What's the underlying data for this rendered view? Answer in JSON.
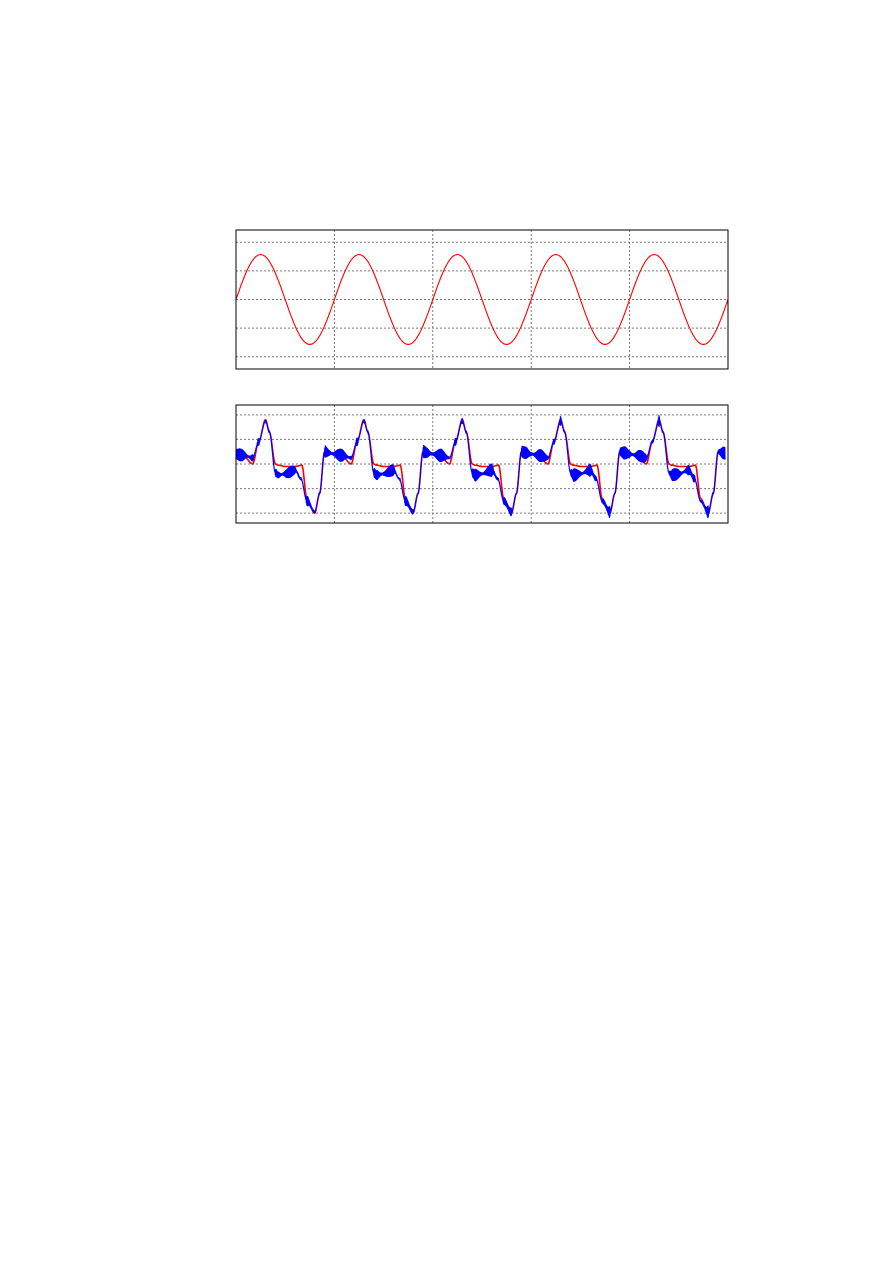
{
  "chart_data": [
    {
      "type": "line",
      "title": "",
      "xlabel": "",
      "ylabel": "",
      "xlim": [
        0,
        5
      ],
      "ylim": [
        -2.43,
        2.43
      ],
      "x_grid": [
        1,
        2,
        3,
        4
      ],
      "y_grid": [
        -2,
        -1,
        0,
        1,
        2
      ],
      "grid": true,
      "grid_style": "dashed",
      "series": [
        {
          "color": "#ff0000",
          "kind": "sine",
          "amplitude": 1.57,
          "period": 1,
          "phase_start": 0
        }
      ]
    },
    {
      "type": "line",
      "title": "",
      "xlabel": "",
      "ylabel": "",
      "xlim": [
        0,
        5
      ],
      "ylim": [
        -2.4,
        2.4
      ],
      "x_grid": [
        1,
        2,
        3,
        4
      ],
      "y_grid": [
        -2,
        -1,
        0,
        1,
        2
      ],
      "grid": true,
      "grid_style": "dashed",
      "series": [
        {
          "color": "#ff0000",
          "kind": "periodic",
          "cycles": 5,
          "cycle": {
            "phase": [
              0,
              0.08,
              0.17,
              0.23,
              0.3,
              0.34,
              0.4,
              0.43,
              0.5,
              0.6,
              0.67,
              0.72,
              0.8,
              0.85,
              0.9,
              0.95
            ],
            "y": [
              0.45,
              0.3,
              0.0,
              0.9,
              1.8,
              1.3,
              0.0,
              -0.05,
              -0.1,
              -0.1,
              -0.05,
              -1.4,
              -2.0,
              -1.2,
              0.5,
              0.45
            ]
          }
        },
        {
          "color": "#0000ff",
          "kind": "periodic",
          "cycles": 5,
          "noise_amplitude": 0.28,
          "cycle": {
            "phase": [
              0,
              0.08,
              0.17,
              0.23,
              0.3,
              0.34,
              0.4,
              0.43,
              0.5,
              0.6,
              0.66,
              0.72,
              0.8,
              0.85,
              0.9,
              0.95
            ],
            "y": [
              0.4,
              0.35,
              0.25,
              0.9,
              1.75,
              1.3,
              -0.35,
              -0.45,
              -0.4,
              -0.25,
              -0.6,
              -1.5,
              -1.95,
              -1.2,
              0.5,
              0.45
            ]
          }
        }
      ]
    }
  ]
}
